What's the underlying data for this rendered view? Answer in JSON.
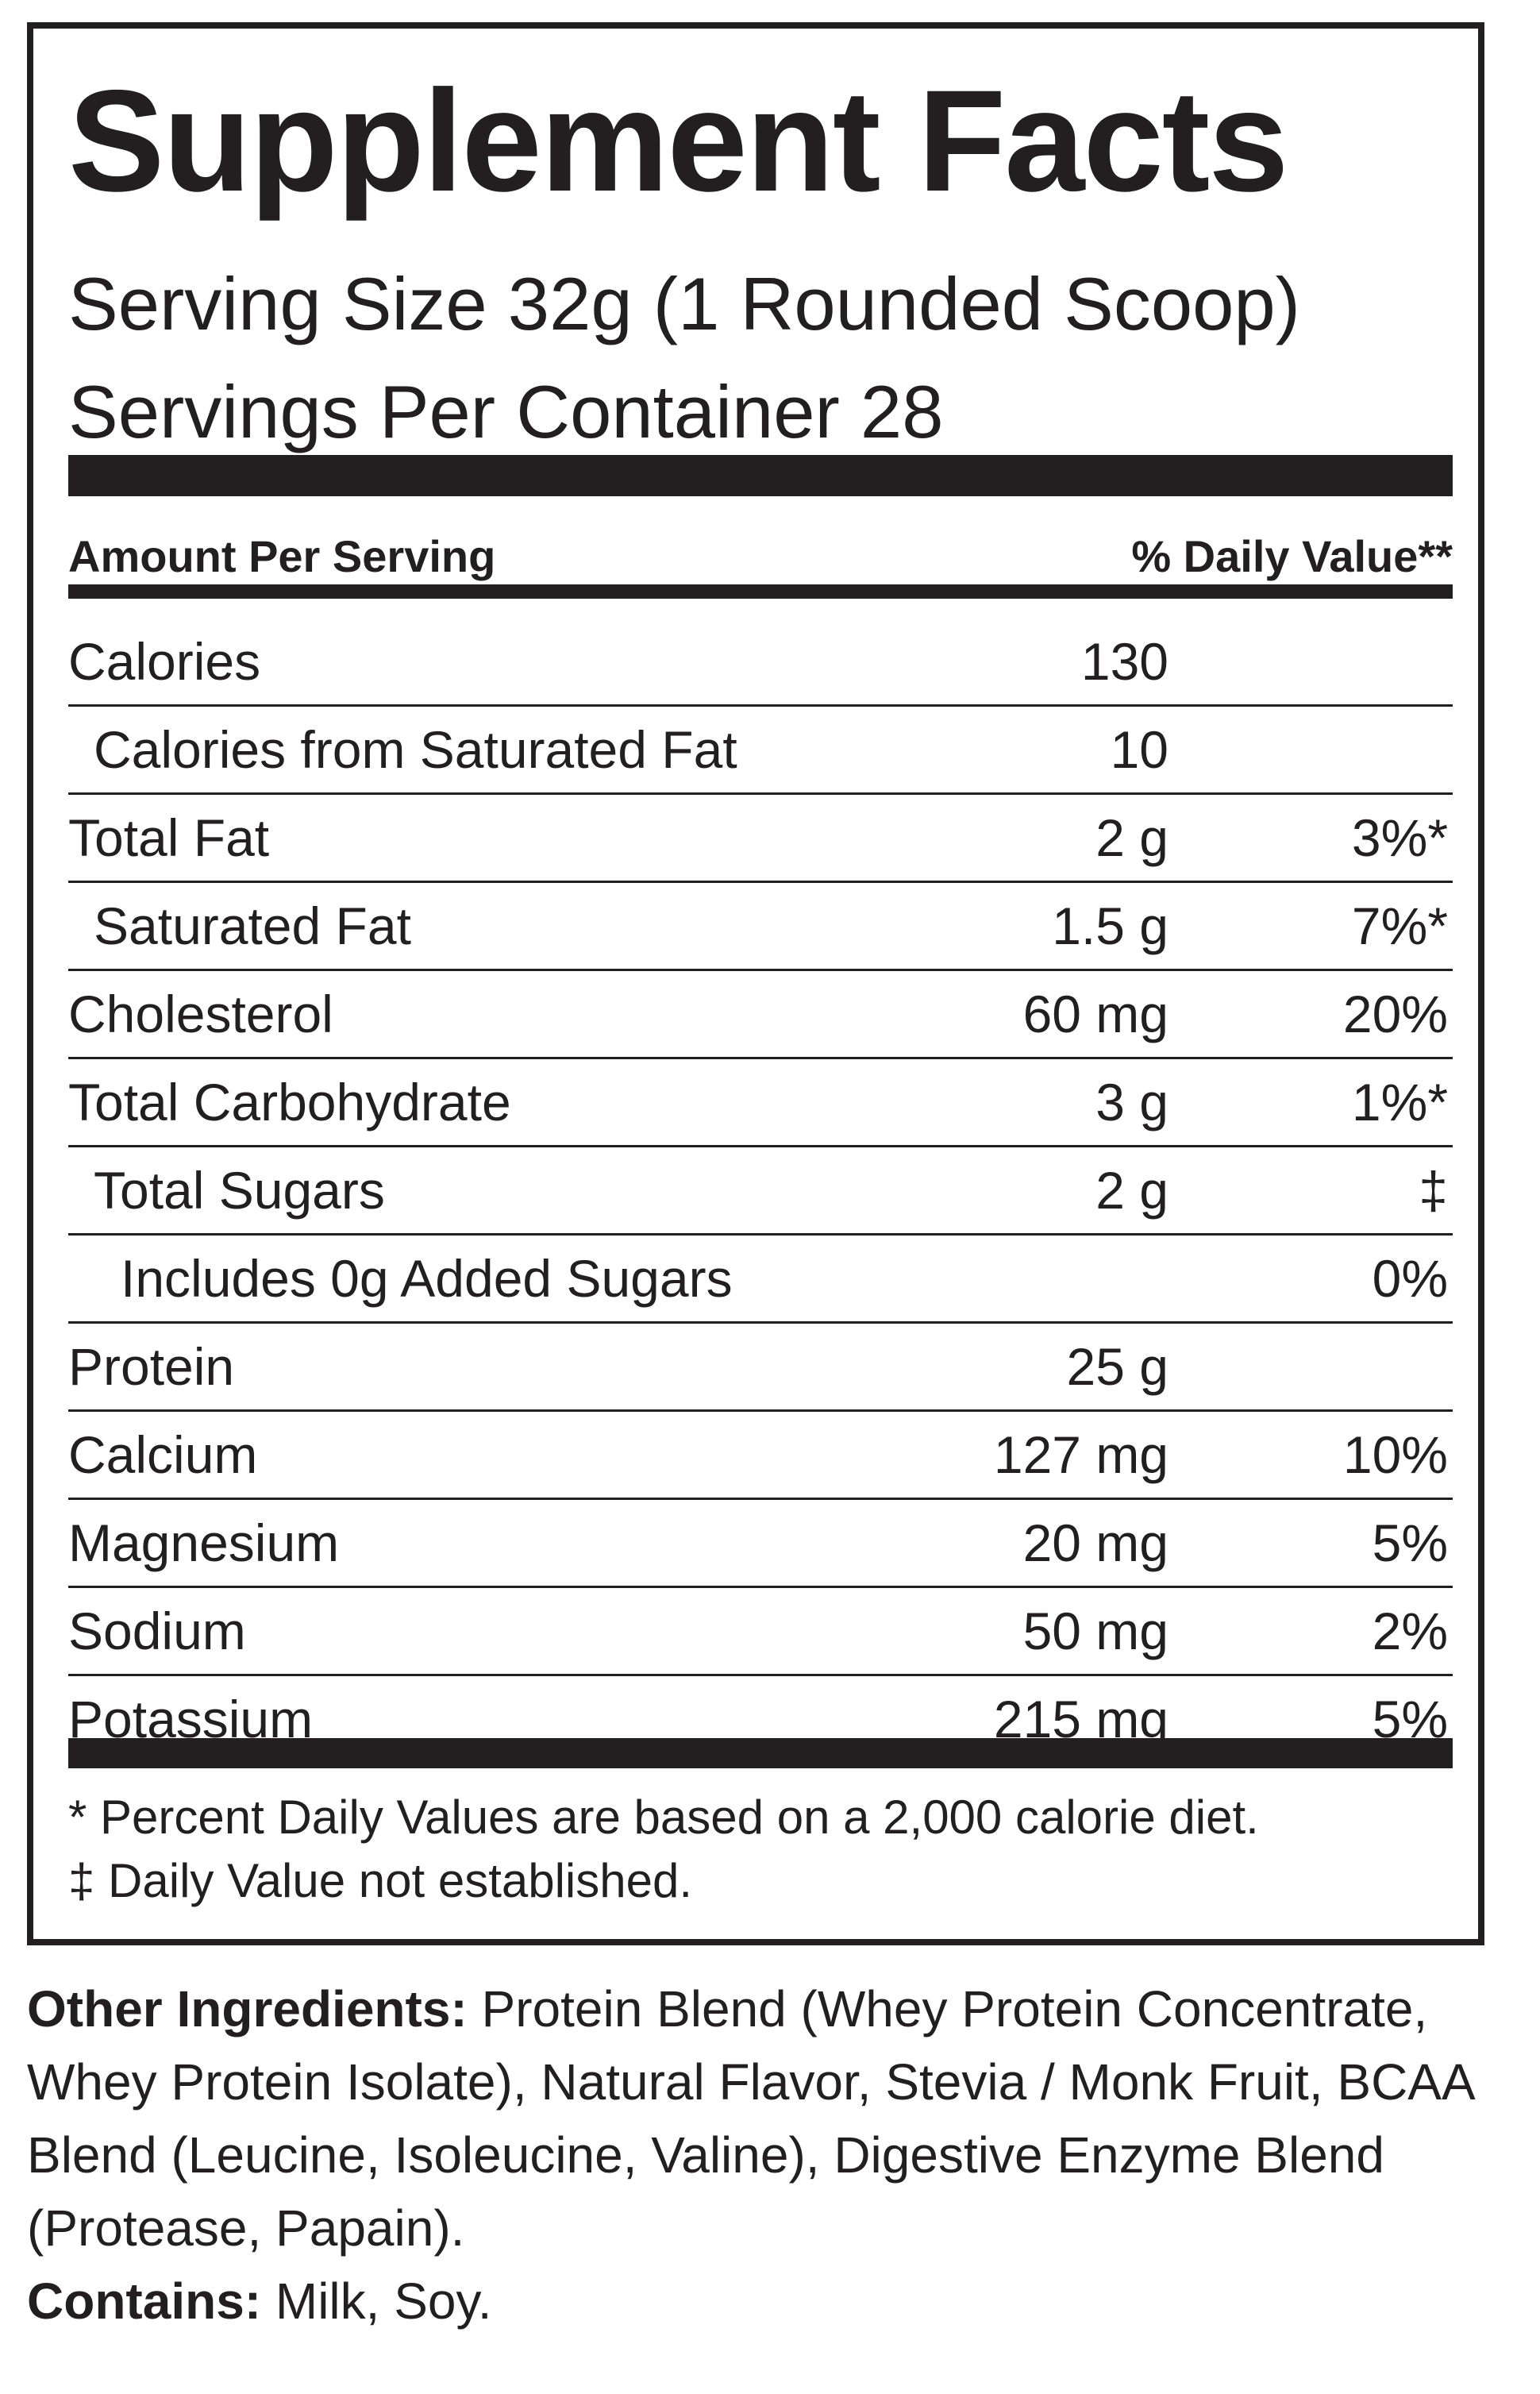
{
  "header": {
    "title": "Supplement Facts",
    "serving_size": "Serving Size 32g (1 Rounded Scoop)",
    "servings_per_container": "Servings Per Container  28"
  },
  "table": {
    "column_headers": [
      "Amount Per Serving",
      "% Daily Value**"
    ],
    "rows": [
      {
        "name": "Calories",
        "amount": "130"
      },
      {
        "name": "Calories from Saturated Fat",
        "amount": "10"
      },
      {
        "name": "Total Fat",
        "amount": "2 g",
        "dv": "3%*"
      },
      {
        "name": "Saturated Fat",
        "amount": "1.5 g",
        "dv": "7%*"
      },
      {
        "name": "Cholesterol",
        "amount": "60 mg",
        "dv": "20%"
      },
      {
        "name": "Total Carbohydrate",
        "amount": "3 g",
        "dv": "1%*"
      },
      {
        "name": "Total Sugars",
        "amount": "2 g",
        "dv": "‡"
      },
      {
        "name": "Includes 0g Added Sugars",
        "dv": "0%"
      },
      {
        "name": "Protein",
        "amount": "25 g"
      },
      {
        "name": "Calcium",
        "amount": "127 mg",
        "dv": "10%"
      },
      {
        "name": "Magnesium",
        "amount": "20 mg",
        "dv": "5%"
      },
      {
        "name": "Sodium",
        "amount": "50 mg",
        "dv": "2%"
      },
      {
        "name": "Potassium",
        "amount": "215 mg",
        "dv": "5%"
      }
    ]
  },
  "footnotes": [
    "* Percent Daily Values are based on a 2,000 calorie diet.",
    "‡ Daily Value not established."
  ],
  "ingredients": {
    "label": "Other Ingredients:",
    "text": "Protein Blend (Whey Protein Concentrate, Whey Protein Isolate), Natural Flavor, Stevia / Monk Fruit, BCAA Blend (Leucine, Isoleucine, Valine), Digestive Enzyme Blend (Protease, Papain)."
  },
  "contains": {
    "label": "Contains:",
    "text": "Milk, Soy."
  }
}
